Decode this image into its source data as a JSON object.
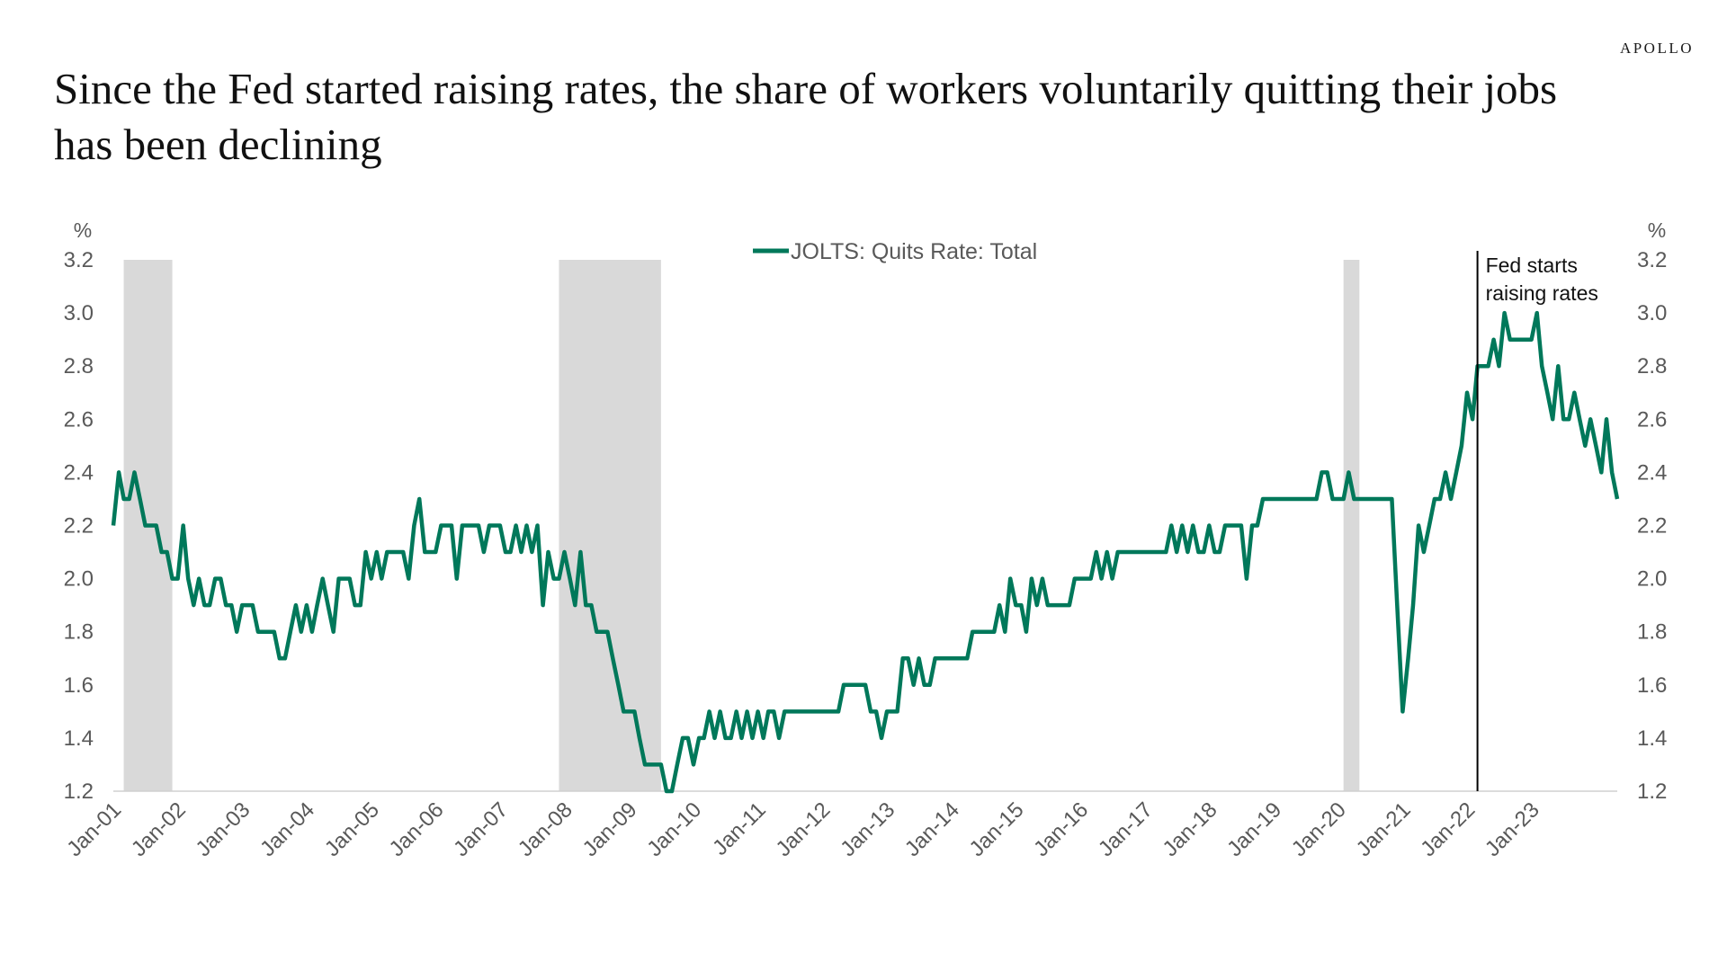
{
  "brand": "APOLLO",
  "title": "Since the Fed started raising rates, the share of workers voluntarily quitting their jobs has been declining",
  "colors": {
    "line": "#00785a",
    "recession": "#d9d9d9",
    "axis": "#595959",
    "annotation": "#000000"
  },
  "chart_data": {
    "type": "line",
    "y_unit_left": "%",
    "y_unit_right": "%",
    "ylim": [
      1.2,
      3.2
    ],
    "y_ticks": [
      "1.2",
      "1.4",
      "1.6",
      "1.8",
      "2.0",
      "2.2",
      "2.4",
      "2.6",
      "2.8",
      "3.0",
      "3.2"
    ],
    "x_ticks": [
      "Jan-01",
      "Jan-02",
      "Jan-03",
      "Jan-04",
      "Jan-05",
      "Jan-06",
      "Jan-07",
      "Jan-08",
      "Jan-09",
      "Jan-10",
      "Jan-11",
      "Jan-12",
      "Jan-13",
      "Jan-14",
      "Jan-15",
      "Jan-16",
      "Jan-17",
      "Jan-18",
      "Jan-19",
      "Jan-20",
      "Jan-21",
      "Jan-22",
      "Jan-23"
    ],
    "grid": false,
    "legend": {
      "position": "top-center",
      "entries": [
        "JOLTS: Quits Rate: Total"
      ]
    },
    "recession_shading": [
      {
        "start": "2001-03",
        "end": "2001-11"
      },
      {
        "start": "2007-12",
        "end": "2009-06"
      },
      {
        "start": "2020-02",
        "end": "2020-04"
      }
    ],
    "annotations": [
      {
        "x": "2022-03",
        "label_lines": [
          "Fed starts",
          "raising rates"
        ]
      }
    ],
    "series": [
      {
        "name": "JOLTS: Quits Rate: Total",
        "x_start": "2001-01",
        "frequency": "monthly",
        "values": [
          2.2,
          2.4,
          2.3,
          2.3,
          2.4,
          2.3,
          2.2,
          2.2,
          2.2,
          2.1,
          2.1,
          2.0,
          2.0,
          2.2,
          2.0,
          1.9,
          2.0,
          1.9,
          1.9,
          2.0,
          2.0,
          1.9,
          1.9,
          1.8,
          1.9,
          1.9,
          1.9,
          1.8,
          1.8,
          1.8,
          1.8,
          1.7,
          1.7,
          1.8,
          1.9,
          1.8,
          1.9,
          1.8,
          1.9,
          2.0,
          1.9,
          1.8,
          2.0,
          2.0,
          2.0,
          1.9,
          1.9,
          2.1,
          2.0,
          2.1,
          2.0,
          2.1,
          2.1,
          2.1,
          2.1,
          2.0,
          2.2,
          2.3,
          2.1,
          2.1,
          2.1,
          2.2,
          2.2,
          2.2,
          2.0,
          2.2,
          2.2,
          2.2,
          2.2,
          2.1,
          2.2,
          2.2,
          2.2,
          2.1,
          2.1,
          2.2,
          2.1,
          2.2,
          2.1,
          2.2,
          1.9,
          2.1,
          2.0,
          2.0,
          2.1,
          2.0,
          1.9,
          2.1,
          1.9,
          1.9,
          1.8,
          1.8,
          1.8,
          1.7,
          1.6,
          1.5,
          1.5,
          1.5,
          1.4,
          1.3,
          1.3,
          1.3,
          1.3,
          1.2,
          1.2,
          1.3,
          1.4,
          1.4,
          1.3,
          1.4,
          1.4,
          1.5,
          1.4,
          1.5,
          1.4,
          1.4,
          1.5,
          1.4,
          1.5,
          1.4,
          1.5,
          1.4,
          1.5,
          1.5,
          1.4,
          1.5,
          1.5,
          1.5,
          1.5,
          1.5,
          1.5,
          1.5,
          1.5,
          1.5,
          1.5,
          1.5,
          1.6,
          1.6,
          1.6,
          1.6,
          1.6,
          1.5,
          1.5,
          1.4,
          1.5,
          1.5,
          1.5,
          1.7,
          1.7,
          1.6,
          1.7,
          1.6,
          1.6,
          1.7,
          1.7,
          1.7,
          1.7,
          1.7,
          1.7,
          1.7,
          1.8,
          1.8,
          1.8,
          1.8,
          1.8,
          1.9,
          1.8,
          2.0,
          1.9,
          1.9,
          1.8,
          2.0,
          1.9,
          2.0,
          1.9,
          1.9,
          1.9,
          1.9,
          1.9,
          2.0,
          2.0,
          2.0,
          2.0,
          2.1,
          2.0,
          2.1,
          2.0,
          2.1,
          2.1,
          2.1,
          2.1,
          2.1,
          2.1,
          2.1,
          2.1,
          2.1,
          2.1,
          2.2,
          2.1,
          2.2,
          2.1,
          2.2,
          2.1,
          2.1,
          2.2,
          2.1,
          2.1,
          2.2,
          2.2,
          2.2,
          2.2,
          2.0,
          2.2,
          2.2,
          2.3,
          2.3,
          2.3,
          2.3,
          2.3,
          2.3,
          2.3,
          2.3,
          2.3,
          2.3,
          2.3,
          2.4,
          2.4,
          2.3,
          2.3,
          2.3,
          2.4,
          2.3,
          2.3,
          2.3,
          2.3,
          2.3,
          2.3,
          2.3,
          2.3,
          1.9,
          1.5,
          1.7,
          1.9,
          2.2,
          2.1,
          2.2,
          2.3,
          2.3,
          2.4,
          2.3,
          2.4,
          2.5,
          2.7,
          2.6,
          2.8,
          2.8,
          2.8,
          2.9,
          2.8,
          3.0,
          2.9,
          2.9,
          2.9,
          2.9,
          2.9,
          3.0,
          2.8,
          2.7,
          2.6,
          2.8,
          2.6,
          2.6,
          2.7,
          2.6,
          2.5,
          2.6,
          2.5,
          2.4,
          2.6,
          2.4,
          2.3
        ]
      }
    ]
  }
}
